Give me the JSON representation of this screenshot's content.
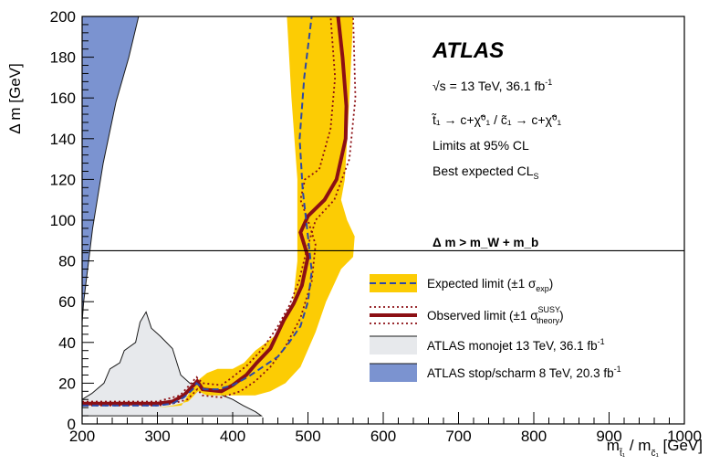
{
  "chart_data": {
    "type": "area",
    "x_axis": {
      "min": 200,
      "max": 1000,
      "ticks": [
        200,
        300,
        400,
        500,
        600,
        700,
        800,
        900,
        1000
      ],
      "label_main": "m",
      "label_sub": "t̃₁",
      "label_sep": " / m",
      "label_sub2": "c̃₁",
      "label_unit": " [GeV]"
    },
    "y_axis": {
      "min": 0,
      "max": 200,
      "ticks": [
        0,
        20,
        40,
        60,
        80,
        100,
        120,
        140,
        160,
        180,
        200
      ],
      "label": "Δ m [GeV]"
    },
    "annotations": {
      "brand": "ATLAS",
      "energy_main": "√s = 13 TeV, 36.1 fb",
      "energy_sup": "-1",
      "process": "t̃₁ → c+χ̃⁰₁ / c̃₁ → c+χ̃⁰₁",
      "cl": "Limits at 95% CL",
      "cls_main": "Best expected CL",
      "cls_sub": "S",
      "threshold_label": "Δ m > m_W + m_b",
      "threshold_y": 85
    },
    "legend": {
      "placement": "right",
      "entries": [
        {
          "main": "Expected limit (±1 σ",
          "sub": "exp",
          "end": ")"
        },
        {
          "main": "Observed limit (±1 σ",
          "sup": "SUSY",
          "sub": "theory",
          "end": ")"
        },
        {
          "main": "ATLAS monojet 13 TeV, 36.1 fb",
          "sup": "-1"
        },
        {
          "main": "ATLAS stop/scharm 8 TeV, 20.3 fb",
          "sup": "-1"
        }
      ]
    },
    "series": {
      "stop_scharm_8tev": {
        "color": "#7b93d0",
        "polygon": [
          [
            200,
            10
          ],
          [
            200,
            200
          ],
          [
            275,
            200
          ],
          [
            262,
            180
          ],
          [
            245,
            158
          ],
          [
            228,
            128
          ],
          [
            214,
            96
          ],
          [
            202,
            60
          ],
          [
            200,
            50
          ]
        ]
      },
      "monojet_13tev": {
        "color": "#e7e9ec",
        "polygon": [
          [
            200,
            6
          ],
          [
            200,
            12
          ],
          [
            213,
            15
          ],
          [
            229,
            20
          ],
          [
            237,
            27
          ],
          [
            250,
            30
          ],
          [
            256,
            36
          ],
          [
            271,
            40
          ],
          [
            277,
            50
          ],
          [
            285,
            55
          ],
          [
            292,
            47
          ],
          [
            304,
            43
          ],
          [
            320,
            37
          ],
          [
            331,
            24
          ],
          [
            343,
            20
          ],
          [
            357,
            20
          ],
          [
            366,
            16
          ],
          [
            380,
            15
          ],
          [
            400,
            12
          ],
          [
            414,
            9
          ],
          [
            430,
            6
          ],
          [
            438,
            4
          ],
          [
            200,
            4
          ]
        ]
      },
      "expected_band": {
        "color": "#fccc04",
        "polygon": [
          [
            200,
            8
          ],
          [
            300,
            8
          ],
          [
            332,
            9
          ],
          [
            347,
            18
          ],
          [
            356,
            22
          ],
          [
            366,
            25
          ],
          [
            380,
            27
          ],
          [
            400,
            27
          ],
          [
            415,
            30
          ],
          [
            430,
            36
          ],
          [
            445,
            40
          ],
          [
            462,
            45
          ],
          [
            480,
            60
          ],
          [
            486,
            80
          ],
          [
            486,
            120
          ],
          [
            478,
            160
          ],
          [
            472,
            200
          ],
          [
            560,
            200
          ],
          [
            555,
            160
          ],
          [
            549,
            120
          ],
          [
            544,
            110
          ],
          [
            552,
            100
          ],
          [
            562,
            92
          ],
          [
            560,
            82
          ],
          [
            544,
            76
          ],
          [
            524,
            60
          ],
          [
            510,
            45
          ],
          [
            490,
            28
          ],
          [
            470,
            20
          ],
          [
            450,
            16
          ],
          [
            430,
            14
          ],
          [
            410,
            14
          ],
          [
            385,
            14
          ],
          [
            366,
            14
          ],
          [
            354,
            16
          ],
          [
            341,
            11
          ],
          [
            320,
            9
          ],
          [
            300,
            8
          ],
          [
            200,
            8
          ]
        ]
      },
      "expected_limit": {
        "color": "#2b48a8",
        "points": [
          [
            200,
            9
          ],
          [
            300,
            9
          ],
          [
            320,
            10
          ],
          [
            335,
            13
          ],
          [
            347,
            17
          ],
          [
            352,
            20
          ],
          [
            362,
            17
          ],
          [
            380,
            17
          ],
          [
            400,
            19
          ],
          [
            420,
            23
          ],
          [
            440,
            28
          ],
          [
            460,
            33
          ],
          [
            475,
            40
          ],
          [
            490,
            48
          ],
          [
            500,
            60
          ],
          [
            505,
            75
          ],
          [
            500,
            92
          ],
          [
            493,
            115
          ],
          [
            489,
            140
          ],
          [
            495,
            170
          ],
          [
            505,
            200
          ]
        ]
      },
      "observed_limit": {
        "color": "#8c0f14",
        "points": [
          [
            200,
            10
          ],
          [
            300,
            10
          ],
          [
            320,
            11
          ],
          [
            335,
            14
          ],
          [
            348,
            19
          ],
          [
            353,
            21
          ],
          [
            360,
            17
          ],
          [
            385,
            16
          ],
          [
            400,
            19
          ],
          [
            418,
            24
          ],
          [
            432,
            30
          ],
          [
            450,
            37
          ],
          [
            468,
            51
          ],
          [
            481,
            59
          ],
          [
            492,
            68
          ],
          [
            500,
            82
          ],
          [
            490,
            94
          ],
          [
            500,
            102
          ],
          [
            522,
            110
          ],
          [
            538,
            120
          ],
          [
            550,
            140
          ],
          [
            551,
            156
          ],
          [
            546,
            180
          ],
          [
            540,
            200
          ]
        ]
      },
      "observed_plus": {
        "color": "#8c0f14",
        "points": [
          [
            200,
            11
          ],
          [
            300,
            11
          ],
          [
            330,
            14
          ],
          [
            345,
            20
          ],
          [
            352,
            23
          ],
          [
            360,
            20
          ],
          [
            385,
            19
          ],
          [
            400,
            23
          ],
          [
            420,
            29
          ],
          [
            440,
            37
          ],
          [
            460,
            48
          ],
          [
            475,
            58
          ],
          [
            488,
            70
          ],
          [
            498,
            85
          ],
          [
            510,
            100
          ],
          [
            535,
            110
          ],
          [
            555,
            130
          ],
          [
            563,
            160
          ],
          [
            560,
            200
          ]
        ]
      },
      "observed_minus": {
        "color": "#8c0f14",
        "points": [
          [
            200,
            9
          ],
          [
            300,
            9
          ],
          [
            320,
            10
          ],
          [
            340,
            12
          ],
          [
            353,
            17
          ],
          [
            360,
            14
          ],
          [
            385,
            13
          ],
          [
            410,
            16
          ],
          [
            430,
            21
          ],
          [
            450,
            28
          ],
          [
            470,
            38
          ],
          [
            490,
            52
          ],
          [
            505,
            70
          ],
          [
            510,
            88
          ],
          [
            500,
            100
          ],
          [
            490,
            110
          ],
          [
            496,
            120
          ],
          [
            515,
            125
          ],
          [
            530,
            145
          ],
          [
            536,
            170
          ],
          [
            530,
            200
          ]
        ]
      }
    }
  }
}
